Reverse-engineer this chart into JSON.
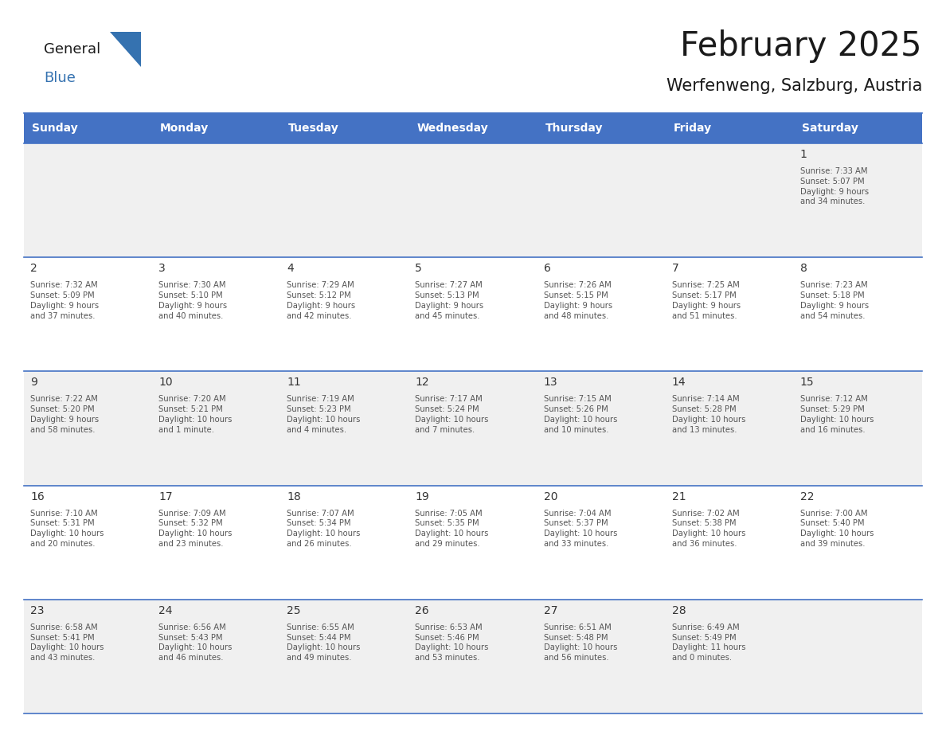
{
  "title": "February 2025",
  "subtitle": "Werfenweng, Salzburg, Austria",
  "days_of_week": [
    "Sunday",
    "Monday",
    "Tuesday",
    "Wednesday",
    "Thursday",
    "Friday",
    "Saturday"
  ],
  "header_bg": "#4472C4",
  "header_text": "#FFFFFF",
  "row_bg_light": "#F0F0F0",
  "row_bg_white": "#FFFFFF",
  "line_color": "#4472C4",
  "day_num_color": "#333333",
  "cell_text_color": "#555555",
  "title_color": "#1a1a1a",
  "subtitle_color": "#1a1a1a",
  "logo_general_color": "#1a1a1a",
  "logo_blue_color": "#3572B0",
  "calendar_data": [
    [
      null,
      null,
      null,
      null,
      null,
      null,
      {
        "day": 1,
        "sunrise": "7:33 AM",
        "sunset": "5:07 PM",
        "daylight": "9 hours\nand 34 minutes."
      }
    ],
    [
      {
        "day": 2,
        "sunrise": "7:32 AM",
        "sunset": "5:09 PM",
        "daylight": "9 hours\nand 37 minutes."
      },
      {
        "day": 3,
        "sunrise": "7:30 AM",
        "sunset": "5:10 PM",
        "daylight": "9 hours\nand 40 minutes."
      },
      {
        "day": 4,
        "sunrise": "7:29 AM",
        "sunset": "5:12 PM",
        "daylight": "9 hours\nand 42 minutes."
      },
      {
        "day": 5,
        "sunrise": "7:27 AM",
        "sunset": "5:13 PM",
        "daylight": "9 hours\nand 45 minutes."
      },
      {
        "day": 6,
        "sunrise": "7:26 AM",
        "sunset": "5:15 PM",
        "daylight": "9 hours\nand 48 minutes."
      },
      {
        "day": 7,
        "sunrise": "7:25 AM",
        "sunset": "5:17 PM",
        "daylight": "9 hours\nand 51 minutes."
      },
      {
        "day": 8,
        "sunrise": "7:23 AM",
        "sunset": "5:18 PM",
        "daylight": "9 hours\nand 54 minutes."
      }
    ],
    [
      {
        "day": 9,
        "sunrise": "7:22 AM",
        "sunset": "5:20 PM",
        "daylight": "9 hours\nand 58 minutes."
      },
      {
        "day": 10,
        "sunrise": "7:20 AM",
        "sunset": "5:21 PM",
        "daylight": "10 hours\nand 1 minute."
      },
      {
        "day": 11,
        "sunrise": "7:19 AM",
        "sunset": "5:23 PM",
        "daylight": "10 hours\nand 4 minutes."
      },
      {
        "day": 12,
        "sunrise": "7:17 AM",
        "sunset": "5:24 PM",
        "daylight": "10 hours\nand 7 minutes."
      },
      {
        "day": 13,
        "sunrise": "7:15 AM",
        "sunset": "5:26 PM",
        "daylight": "10 hours\nand 10 minutes."
      },
      {
        "day": 14,
        "sunrise": "7:14 AM",
        "sunset": "5:28 PM",
        "daylight": "10 hours\nand 13 minutes."
      },
      {
        "day": 15,
        "sunrise": "7:12 AM",
        "sunset": "5:29 PM",
        "daylight": "10 hours\nand 16 minutes."
      }
    ],
    [
      {
        "day": 16,
        "sunrise": "7:10 AM",
        "sunset": "5:31 PM",
        "daylight": "10 hours\nand 20 minutes."
      },
      {
        "day": 17,
        "sunrise": "7:09 AM",
        "sunset": "5:32 PM",
        "daylight": "10 hours\nand 23 minutes."
      },
      {
        "day": 18,
        "sunrise": "7:07 AM",
        "sunset": "5:34 PM",
        "daylight": "10 hours\nand 26 minutes."
      },
      {
        "day": 19,
        "sunrise": "7:05 AM",
        "sunset": "5:35 PM",
        "daylight": "10 hours\nand 29 minutes."
      },
      {
        "day": 20,
        "sunrise": "7:04 AM",
        "sunset": "5:37 PM",
        "daylight": "10 hours\nand 33 minutes."
      },
      {
        "day": 21,
        "sunrise": "7:02 AM",
        "sunset": "5:38 PM",
        "daylight": "10 hours\nand 36 minutes."
      },
      {
        "day": 22,
        "sunrise": "7:00 AM",
        "sunset": "5:40 PM",
        "daylight": "10 hours\nand 39 minutes."
      }
    ],
    [
      {
        "day": 23,
        "sunrise": "6:58 AM",
        "sunset": "5:41 PM",
        "daylight": "10 hours\nand 43 minutes."
      },
      {
        "day": 24,
        "sunrise": "6:56 AM",
        "sunset": "5:43 PM",
        "daylight": "10 hours\nand 46 minutes."
      },
      {
        "day": 25,
        "sunrise": "6:55 AM",
        "sunset": "5:44 PM",
        "daylight": "10 hours\nand 49 minutes."
      },
      {
        "day": 26,
        "sunrise": "6:53 AM",
        "sunset": "5:46 PM",
        "daylight": "10 hours\nand 53 minutes."
      },
      {
        "day": 27,
        "sunrise": "6:51 AM",
        "sunset": "5:48 PM",
        "daylight": "10 hours\nand 56 minutes."
      },
      {
        "day": 28,
        "sunrise": "6:49 AM",
        "sunset": "5:49 PM",
        "daylight": "11 hours\nand 0 minutes."
      },
      null
    ]
  ],
  "row_backgrounds": [
    "light",
    "white",
    "light",
    "white",
    "light"
  ],
  "fig_width": 11.88,
  "fig_height": 9.18,
  "dpi": 100
}
